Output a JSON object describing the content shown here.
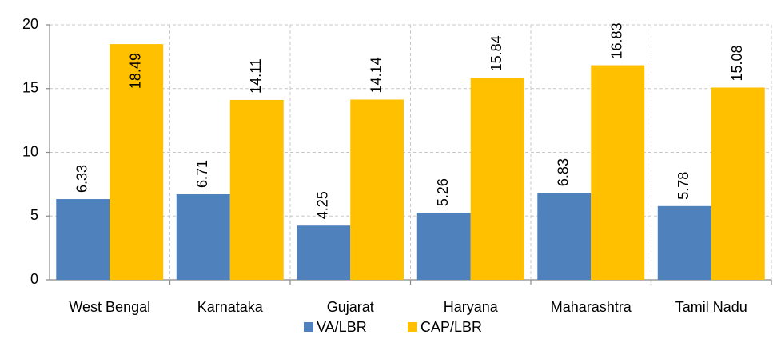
{
  "chart_data": {
    "type": "bar",
    "categories": [
      "West Bengal",
      "Karnataka",
      "Gujarat",
      "Haryana",
      "Maharashtra",
      "Tamil Nadu"
    ],
    "series": [
      {
        "name": "VA/LBR",
        "color": "#4f81bd",
        "values": [
          6.33,
          6.71,
          4.25,
          5.26,
          6.83,
          5.78
        ]
      },
      {
        "name": "CAP/LBR",
        "color": "#ffc000",
        "values": [
          18.49,
          14.11,
          14.14,
          15.84,
          16.83,
          15.08
        ]
      }
    ],
    "ylim": [
      0,
      20
    ],
    "yticks": [
      0,
      5,
      10,
      15,
      20
    ],
    "grid": true,
    "legend": "bottom"
  }
}
